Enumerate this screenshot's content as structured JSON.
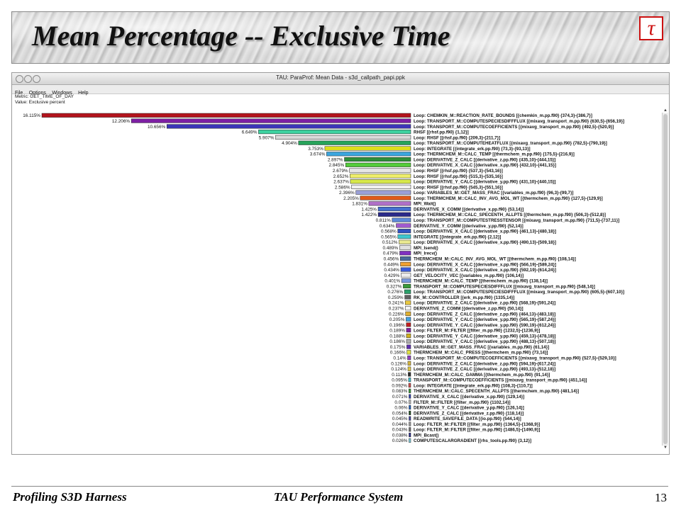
{
  "slide": {
    "title": "Mean Percentage -- Exclusive Time",
    "logo_glyph": "τ",
    "footer_left": "Profiling S3D Harness",
    "footer_center": "TAU Performance System",
    "page_number": "13"
  },
  "window": {
    "title": "TAU: ParaProf: Mean Data - s3d_callpath_papi.ppk",
    "menu": [
      "File",
      "Options",
      "Windows",
      "Help"
    ],
    "metric_line": "Metric: GET_TIME_OF_DAY",
    "value_line": "Value: Exclusive percent"
  },
  "chart_data": {
    "type": "bar",
    "orientation": "horizontal",
    "rows": [
      {
        "pct": 16.115,
        "label": "16.115%",
        "color": "#b3141d",
        "name": "Loop: CHEMKIN_M::REACTION_RATE_BOUNDS [{chemkin_m.pp.f90} {374,3}-{386,7}]"
      },
      {
        "pct": 12.206,
        "label": "12.206%",
        "color": "#7d1fa3",
        "name": "Loop: TRANSPORT_M::COMPUTESPECIESDIFFFLUX [{mixavg_transport_m.pp.f90} {630,5}-{656,19}]"
      },
      {
        "pct": 10.656,
        "label": "10.656%",
        "color": "#3c35b8",
        "name": "Loop: TRANSPORT_M::COMPUTECOEFFICIENTS [{mixavg_transport_m.pp.f90} {492,5}-{520,9}]"
      },
      {
        "pct": 6.649,
        "label": "6.649%",
        "color": "#3ed2a0",
        "name": "RHSF [{rhsf.pp.f90} {1,12}]"
      },
      {
        "pct": 5.907,
        "label": "5.907%",
        "color": "#d9d9d9",
        "name": "Loop: RHSF [{rhsf.pp.f90} {209,3}-{211,7}]"
      },
      {
        "pct": 4.904,
        "label": "4.904%",
        "color": "#27a35a",
        "name": "Loop: TRANSPORT_M::COMPUTEHEATFLUX [{mixavg_transport_m.pp.f90} {782,5}-{790,19}]"
      },
      {
        "pct": 3.753,
        "label": "3.753%",
        "color": "#dede1c",
        "name": "Loop: INTEGRATE [{integrate_erk.pp.f90} {73,3}-{93,13}]"
      },
      {
        "pct": 3.674,
        "label": "3.674%",
        "color": "#3ba5de",
        "name": "Loop: THERMCHEM_M::CALC_TEMP [{thermchem_m.pp.f90} {175,5}-{216,9}]"
      },
      {
        "pct": 2.897,
        "label": "2.897%",
        "color": "#2f8f3a",
        "name": "Loop: DERIVATIVE_Z_CALC [{derivative_z.pp.f90} {435,10}-{444,15}]"
      },
      {
        "pct": 2.845,
        "label": "2.845%",
        "color": "#54cc3a",
        "name": "Loop: DERIVATIVE_X_CALC [{derivative_x.pp.f90} {432,10}-{441,15}]"
      },
      {
        "pct": 2.679,
        "label": "2.679%",
        "color": "#e6e6e6",
        "name": "Loop: RHSF [{rhsf.pp.f90} {537,3}-{543,16}]"
      },
      {
        "pct": 2.652,
        "label": "2.652%",
        "color": "#eded6a",
        "name": "Loop: RHSF [{rhsf.pp.f90} {515,3}-{535,16}]"
      },
      {
        "pct": 2.637,
        "label": "2.637%",
        "color": "#d7e84a",
        "name": "Loop: DERIVATIVE_Y_CALC [{derivative_y.pp.f90} {431,10}-{440,15}]"
      },
      {
        "pct": 2.586,
        "label": "2.586%",
        "color": "#f0f0f0",
        "name": "Loop: RHSF [{rhsf.pp.f90} {545,3}-{551,16}]"
      },
      {
        "pct": 2.396,
        "label": "2.396%",
        "color": "#9aa0d8",
        "name": "Loop: VARIABLES_M::GET_MASS_FRAC [{variables_m.pp.f90} {96,3}-{99,7}]"
      },
      {
        "pct": 2.205,
        "label": "2.205%",
        "color": "#e05a1a",
        "name": "Loop: THERMCHEM_M::CALC_INV_AVG_MOL_WT [{thermchem_m.pp.f90} {127,5}-{129,9}]"
      },
      {
        "pct": 1.831,
        "label": "1.831%",
        "color": "#b070c8",
        "name": "MPI_Wait()"
      },
      {
        "pct": 1.425,
        "label": "1.425%",
        "color": "#4470d0",
        "name": "DERIVATIVE_X_COMM [{derivative_x.pp.f90} {53,14}]"
      },
      {
        "pct": 1.422,
        "label": "1.422%",
        "color": "#2a2a8a",
        "name": "Loop: THERMCHEM_M::CALC_SPECENTH_ALLPTS [{thermchem_m.pp.f90} {506,3}-{512,8}]"
      },
      {
        "pct": 0.811,
        "label": "0.811%",
        "color": "#5d8ad8",
        "name": "Loop: TRANSPORT_M::COMPUTESTRESSTENSOR [{mixavg_transport_m.pp.f90} {711,5}-{737,11}]"
      },
      {
        "pct": 0.634,
        "label": "0.634%",
        "color": "#a05ad0",
        "name": "DERIVATIVE_Y_COMM [{derivative_y.pp.f90} {52,14}]"
      },
      {
        "pct": 0.568,
        "label": "0.568%",
        "color": "#3050c0",
        "name": "Loop: DERIVATIVE_X_CALC [{derivative_x.pp.f90} {461,13}-{480,18}]"
      },
      {
        "pct": 0.565,
        "label": "0.565%",
        "color": "#3ec8d0",
        "name": "INTEGRATE [{integrate_erk.pp.f90} {2,12}]"
      },
      {
        "pct": 0.512,
        "label": "0.512%",
        "color": "#e8e890",
        "name": "Loop: DERIVATIVE_X_CALC [{derivative_x.pp.f90} {490,13}-{509,18}]"
      },
      {
        "pct": 0.489,
        "label": "0.489%",
        "color": "#e0e0e0",
        "name": "MPI_Isend()"
      },
      {
        "pct": 0.479,
        "label": "0.479%",
        "color": "#8030c0",
        "name": "MPI_Irecv()"
      },
      {
        "pct": 0.456,
        "label": "0.456%",
        "color": "#4a6a9a",
        "name": "THERMCHEM_M::CALC_INV_AVG_MOL_WT [{thermchem_m.pp.f90} {108,14}]"
      },
      {
        "pct": 0.449,
        "label": "0.449%",
        "color": "#f0a030",
        "name": "Loop: DERIVATIVE_X_CALC [{derivative_x.pp.f90} {566,19}-{589,24}]"
      },
      {
        "pct": 0.434,
        "label": "0.434%",
        "color": "#3a5ad8",
        "name": "Loop: DERIVATIVE_X_CALC [{derivative_x.pp.f90} {592,19}-{614,24}]"
      },
      {
        "pct": 0.429,
        "label": "0.429%",
        "color": "#ececec",
        "name": "GET_VELOCITY_VEC [{variables_m.pp.f90} {106,14}]"
      },
      {
        "pct": 0.401,
        "label": "0.401%",
        "color": "#7a9ae0",
        "name": "THERMCHEM_M::CALC_TEMP [{thermchem_m.pp.f90} {138,14}]"
      },
      {
        "pct": 0.327,
        "label": "0.327%",
        "color": "#3a9a3a",
        "name": "TRANSPORT_M::COMPUTESPECIESDIFFFLUX [{mixavg_transport_m.pp.f90} {548,14}]"
      },
      {
        "pct": 0.276,
        "label": "0.276%",
        "color": "#2aa06a",
        "name": "Loop: TRANSPORT_M::COMPUTESPECIESDIFFFLUX [{mixavg_transport_m.pp.f90} {605,5}-{607,10}]"
      },
      {
        "pct": 0.259,
        "label": "0.259%",
        "color": "#606060",
        "name": "RK_M::CONTROLLER [{erk_m.pp.f90} {1335,14}]"
      },
      {
        "pct": 0.241,
        "label": "0.241%",
        "color": "#e8c840",
        "name": "Loop: DERIVATIVE_Z_CALC [{derivative_z.pp.f90} {568,19}-{591,24}]"
      },
      {
        "pct": 0.237,
        "label": "0.237%",
        "color": "#f5f5f5",
        "name": "DERIVATIVE_Z_COMM [{derivative_z.pp.f90} {50,14}]"
      },
      {
        "pct": 0.226,
        "label": "0.226%",
        "color": "#e0b030",
        "name": "Loop: DERIVATIVE_Z_CALC [{derivative_z.pp.f90} {464,13}-{483,18}]"
      },
      {
        "pct": 0.205,
        "label": "0.205%",
        "color": "#40a0e0",
        "name": "Loop: DERIVATIVE_Y_CALC [{derivative_y.pp.f90} {565,19}-{587,24}]"
      },
      {
        "pct": 0.196,
        "label": "0.196%",
        "color": "#c02020",
        "name": "Loop: DERIVATIVE_Y_CALC [{derivative_y.pp.f90} {590,19}-{612,24}]"
      },
      {
        "pct": 0.189,
        "label": "0.189%",
        "color": "#8020a0",
        "name": "Loop: FILTER_M::FILTER [{filter_m.pp.f90} {1232,5}-{1236,9}]"
      },
      {
        "pct": 0.188,
        "label": "0.188%",
        "color": "#d0b020",
        "name": "Loop: DERIVATIVE_Y_CALC [{derivative_y.pp.f90} {459,13}-{478,18}]"
      },
      {
        "pct": 0.186,
        "label": "0.186%",
        "color": "#b0b0b0",
        "name": "Loop: DERIVATIVE_Y_CALC [{derivative_y.pp.f90} {488,13}-{507,18}]"
      },
      {
        "pct": 0.175,
        "label": "0.175%",
        "color": "#6030b0",
        "name": "VARIABLES_M::GET_MASS_FRAC [{variables_m.pp.f90} {61,14}]"
      },
      {
        "pct": 0.166,
        "label": "0.166%",
        "color": "#e0e040",
        "name": "THERMCHEM_M::CALC_PRESS [{thermchem_m.pp.f90} {73,14}]"
      },
      {
        "pct": 0.14,
        "label": "0.14%",
        "color": "#9040c0",
        "name": "Loop: TRANSPORT_M::COMPUTECOEFFICIENTS [{mixavg_transport_m.pp.f90} {527,5}-{529,10}]"
      },
      {
        "pct": 0.126,
        "label": "0.126%",
        "color": "#d8b840",
        "name": "Loop: DERIVATIVE_Z_CALC [{derivative_z.pp.f90} {594,19}-{617,24}]"
      },
      {
        "pct": 0.124,
        "label": "0.124%",
        "color": "#e0c848",
        "name": "Loop: DERIVATIVE_Z_CALC [{derivative_z.pp.f90} {493,13}-{512,18}]"
      },
      {
        "pct": 0.113,
        "label": "0.113%",
        "color": "#303030",
        "name": "THERMCHEM_M::CALC_GAMMA [{thermchem_m.pp.f90} {91,14}]"
      },
      {
        "pct": 0.095,
        "label": "0.095%",
        "color": "#40c0d0",
        "name": "TRANSPORT_M::COMPUTECOEFFICIENTS [{mixavg_transport_m.pp.f90} {451,14}]"
      },
      {
        "pct": 0.092,
        "label": "0.092%",
        "color": "#d05050",
        "name": "Loop: INTEGRATE [{integrate_erk.pp.f90} {108,3}-{110,7}]"
      },
      {
        "pct": 0.083,
        "label": "0.083%",
        "color": "#40a040",
        "name": "THERMCHEM_M::CALC_SPECENTH_ALLPTS [{thermchem_m.pp.f90} {481,14}]"
      },
      {
        "pct": 0.071,
        "label": "0.071%",
        "color": "#3040b0",
        "name": "DERIVATIVE_X_CALC [{derivative_x.pp.f90} {129,14}]"
      },
      {
        "pct": 0.07,
        "label": "0.07%",
        "color": "#c0c0c0",
        "name": "FILTER_M::FILTER [{filter_m.pp.f90} {1102,14}]"
      },
      {
        "pct": 0.06,
        "label": "0.06%",
        "color": "#2060c0",
        "name": "DERIVATIVE_Y_CALC [{derivative_y.pp.f90} {126,14}]"
      },
      {
        "pct": 0.054,
        "label": "0.054%",
        "color": "#205020",
        "name": "DERIVATIVE_Z_CALC [{derivative_z.pp.f90} {118,14}]"
      },
      {
        "pct": 0.045,
        "label": "0.045%",
        "color": "#4040a0",
        "name": "READWRITE_SAVEFILE_DATA [{io.pp.f90} {544,14}]"
      },
      {
        "pct": 0.044,
        "label": "0.044%",
        "color": "#a0a0a0",
        "name": "Loop: FILTER_M::FILTER [{filter_m.pp.f90} {1364,5}-{1368,9}]"
      },
      {
        "pct": 0.043,
        "label": "0.043%",
        "color": "#707070",
        "name": "Loop: FILTER_M::FILTER [{filter_m.pp.f90} {1486,5}-{1490,9}]"
      },
      {
        "pct": 0.038,
        "label": "0.038%",
        "color": "#303090",
        "name": "MPI_Bcast()"
      },
      {
        "pct": 0.026,
        "label": "0.026%",
        "color": "#80d0e0",
        "name": "COMPUTESCALARGRADIENT [{rhs_tools.pp.f90} {3,12}]"
      }
    ]
  }
}
